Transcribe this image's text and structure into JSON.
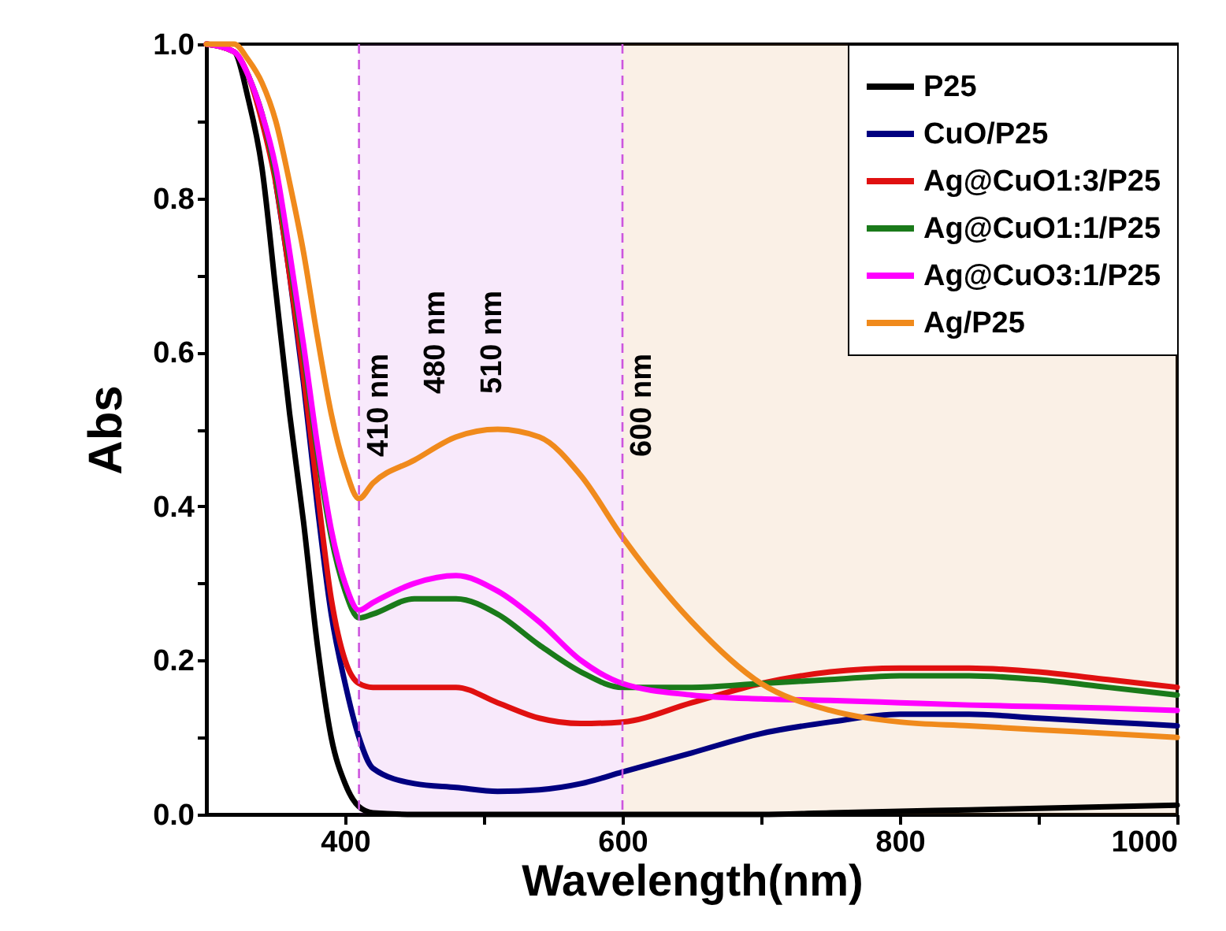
{
  "chart_data": {
    "type": "line",
    "xlabel": "Wavelength(nm)",
    "ylabel": "Abs",
    "xlim": [
      300,
      1000
    ],
    "ylim": [
      0,
      1
    ],
    "xticks": [
      400,
      {
        "value": 500,
        "label": null
      },
      600,
      {
        "value": 700,
        "label": null
      },
      800,
      {
        "value": 900,
        "label": null
      },
      1000
    ],
    "yticks": [
      {
        "value": 0,
        "label": "0.0"
      },
      {
        "value": 0.1,
        "label": null
      },
      0.2,
      {
        "value": 0.3,
        "label": null
      },
      0.4,
      {
        "value": 0.5,
        "label": null
      },
      0.6,
      {
        "value": 0.7,
        "label": null
      },
      0.8,
      {
        "value": 0.9,
        "label": null
      },
      {
        "value": 1,
        "label": "1.0"
      }
    ],
    "grid": false,
    "legend": "top right",
    "line_style": "solid",
    "x": [
      300,
      320,
      330,
      340,
      350,
      360,
      370,
      380,
      390,
      400,
      410,
      420,
      450,
      480,
      510,
      540,
      570,
      600,
      650,
      700,
      750,
      800,
      850,
      900,
      950,
      1000
    ],
    "series": [
      {
        "name": "P25",
        "color": "#000000",
        "values": [
          1.0,
          0.99,
          0.93,
          0.84,
          0.68,
          0.52,
          0.38,
          0.22,
          0.1,
          0.04,
          0.01,
          0.002,
          0.0,
          0.0,
          0.0,
          0.0,
          0.0,
          0.0,
          0.0,
          0.0,
          0.002,
          0.004,
          0.006,
          0.008,
          0.01,
          0.012
        ]
      },
      {
        "name": "CuO/P25",
        "color": "#000080",
        "values": [
          null,
          null,
          null,
          null,
          0.82,
          0.7,
          0.56,
          0.4,
          0.26,
          0.17,
          0.1,
          0.06,
          0.04,
          0.035,
          0.03,
          0.032,
          0.04,
          0.055,
          0.08,
          0.105,
          0.12,
          0.13,
          0.13,
          0.125,
          0.12,
          0.115
        ]
      },
      {
        "name": "Ag@CuO1:3/P25",
        "color": "#e01010",
        "values": [
          1.0,
          0.99,
          0.96,
          0.9,
          0.82,
          0.7,
          0.57,
          0.42,
          0.28,
          0.2,
          0.17,
          0.165,
          0.165,
          0.165,
          0.145,
          0.125,
          0.118,
          0.12,
          0.145,
          0.17,
          0.185,
          0.19,
          0.19,
          0.185,
          0.175,
          0.165
        ]
      },
      {
        "name": "Ag@CuO1:1/P25",
        "color": "#1a7a1a",
        "values": [
          null,
          null,
          0.96,
          0.91,
          0.83,
          0.72,
          0.6,
          0.47,
          0.36,
          0.29,
          0.255,
          0.26,
          0.28,
          0.28,
          0.26,
          0.22,
          0.185,
          0.165,
          0.165,
          0.17,
          0.175,
          0.18,
          0.18,
          0.175,
          0.165,
          0.155
        ]
      },
      {
        "name": "Ag@CuO3:1/P25",
        "color": "#ff00ff",
        "values": [
          1.0,
          0.99,
          0.96,
          0.91,
          0.84,
          0.73,
          0.61,
          0.48,
          0.37,
          0.3,
          0.265,
          0.275,
          0.3,
          0.31,
          0.29,
          0.25,
          0.2,
          0.17,
          0.155,
          0.15,
          0.148,
          0.145,
          0.142,
          0.14,
          0.138,
          0.135
        ]
      },
      {
        "name": "Ag/P25",
        "color": "#f08a1c",
        "values": [
          1.0,
          1.0,
          0.98,
          0.95,
          0.9,
          0.82,
          0.73,
          0.62,
          0.52,
          0.45,
          0.41,
          0.43,
          0.46,
          0.49,
          0.5,
          0.49,
          0.44,
          0.36,
          0.25,
          0.17,
          0.135,
          0.12,
          0.115,
          0.11,
          0.105,
          0.1
        ]
      }
    ],
    "bands": [
      {
        "axis": "x",
        "from": 410,
        "to": 600,
        "color": "#cc55dd"
      },
      {
        "axis": "x",
        "from": 600,
        "to": 1000,
        "color": "#d98c3a"
      }
    ],
    "ref_lines": [
      {
        "axis": "x",
        "value": 410,
        "color": "#cc55dd",
        "line_style": "dashed",
        "label": "410 nm"
      },
      {
        "axis": "x",
        "value": 600,
        "color": "#cc55dd",
        "line_style": "dashed",
        "label": "600 nm"
      }
    ],
    "annotations": [
      "480 nm",
      "510 nm"
    ]
  }
}
